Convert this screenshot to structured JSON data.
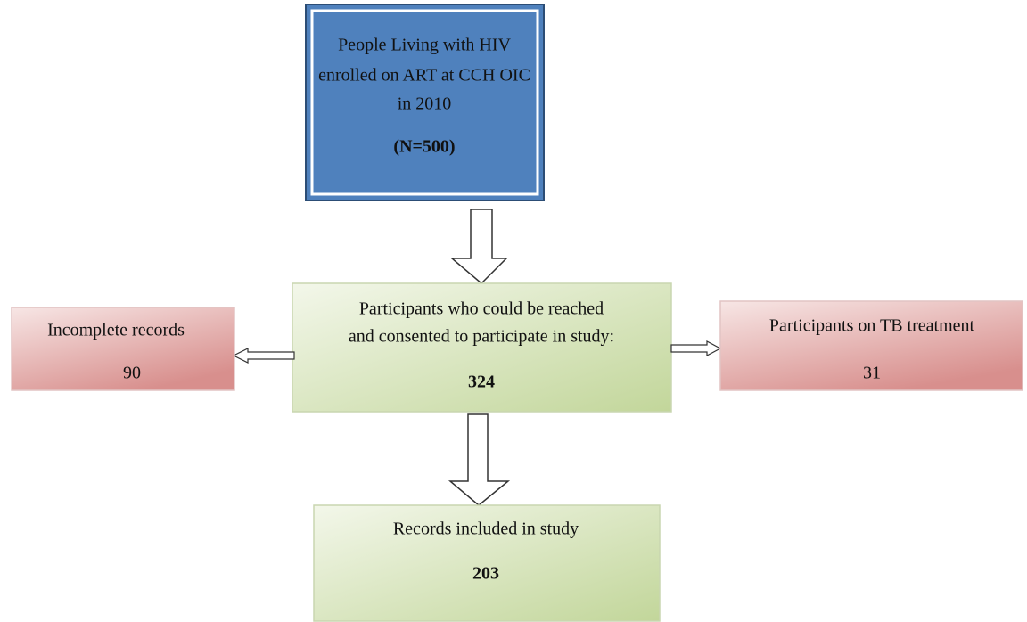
{
  "nodes": [
    {
      "lines": [
        "People Living with HIV",
        "enrolled on ART at CCH OIC",
        "in 2010"
      ],
      "count": "(N=500)"
    },
    {
      "lines": [
        "Participants who could be reached",
        "and consented to participate in study:"
      ],
      "count": "324"
    },
    {
      "lines": [
        "Incomplete records"
      ],
      "count": "90"
    },
    {
      "lines": [
        "Participants on TB treatment"
      ],
      "count": "31"
    },
    {
      "lines": [
        "Records included in study"
      ],
      "count": "203"
    }
  ]
}
